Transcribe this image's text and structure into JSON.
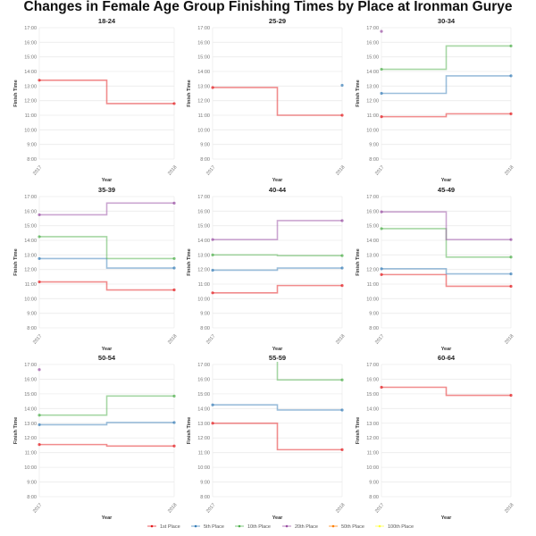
{
  "chart_data": {
    "type": "line",
    "step": "mid",
    "title": "Changes in Female Age Group Finishing Times by Place at Ironman Gurye",
    "xlabel": "Year",
    "ylabel": "Finish Time",
    "x": [
      "2017",
      "2018"
    ],
    "yticks": [
      "8:00",
      "9:00",
      "10:00",
      "11:00",
      "12:00",
      "13:00",
      "14:00",
      "15:00",
      "16:00",
      "17:00"
    ],
    "ylim": [
      8,
      17
    ],
    "grid": true,
    "legend_placement": "bottom",
    "legend": [
      "1st Place",
      "5th Place",
      "10th Place",
      "20th Place",
      "50th Place",
      "100th Place"
    ],
    "colors": {
      "1st Place": "#e41a1c",
      "5th Place": "#377eb8",
      "10th Place": "#4daf4a",
      "20th Place": "#984ea3",
      "50th Place": "#ff7f00",
      "100th Place": "#ffff33"
    },
    "y_units": "hours",
    "panels": [
      {
        "title": "18-24",
        "series": [
          {
            "name": "1st Place",
            "values": [
              13.4,
              11.8
            ]
          }
        ]
      },
      {
        "title": "25-29",
        "series": [
          {
            "name": "1st Place",
            "values": [
              12.9,
              11.0
            ]
          },
          {
            "name": "5th Place",
            "values": [
              null,
              13.05
            ]
          }
        ]
      },
      {
        "title": "30-34",
        "series": [
          {
            "name": "1st Place",
            "values": [
              10.9,
              11.1
            ]
          },
          {
            "name": "5th Place",
            "values": [
              12.5,
              13.7
            ]
          },
          {
            "name": "10th Place",
            "values": [
              14.15,
              15.75
            ]
          },
          {
            "name": "20th Place",
            "values": [
              16.75,
              null
            ]
          }
        ]
      },
      {
        "title": "35-39",
        "series": [
          {
            "name": "1st Place",
            "values": [
              11.15,
              10.6
            ]
          },
          {
            "name": "5th Place",
            "values": [
              12.75,
              12.1
            ]
          },
          {
            "name": "10th Place",
            "values": [
              14.25,
              12.75
            ]
          },
          {
            "name": "20th Place",
            "values": [
              15.75,
              16.55
            ]
          }
        ]
      },
      {
        "title": "40-44",
        "series": [
          {
            "name": "1st Place",
            "values": [
              10.4,
              10.9
            ]
          },
          {
            "name": "5th Place",
            "values": [
              11.95,
              12.1
            ]
          },
          {
            "name": "10th Place",
            "values": [
              13.0,
              12.95
            ]
          },
          {
            "name": "20th Place",
            "values": [
              14.05,
              15.35
            ]
          }
        ]
      },
      {
        "title": "45-49",
        "series": [
          {
            "name": "1st Place",
            "values": [
              11.65,
              10.85
            ]
          },
          {
            "name": "5th Place",
            "values": [
              12.05,
              11.7
            ]
          },
          {
            "name": "10th Place",
            "values": [
              14.8,
              12.85
            ]
          },
          {
            "name": "20th Place",
            "values": [
              15.95,
              14.05
            ]
          }
        ]
      },
      {
        "title": "50-54",
        "series": [
          {
            "name": "1st Place",
            "values": [
              11.55,
              11.45
            ]
          },
          {
            "name": "5th Place",
            "values": [
              12.9,
              13.05
            ]
          },
          {
            "name": "10th Place",
            "values": [
              13.55,
              14.85
            ]
          },
          {
            "name": "20th Place",
            "values": [
              16.65,
              null
            ]
          }
        ]
      },
      {
        "title": "55-59",
        "series": [
          {
            "name": "1st Place",
            "values": [
              13.0,
              11.2
            ]
          },
          {
            "name": "5th Place",
            "values": [
              14.25,
              13.9
            ]
          },
          {
            "name": "10th Place",
            "values": [
              17.4,
              15.95
            ]
          }
        ]
      },
      {
        "title": "60-64",
        "series": [
          {
            "name": "1st Place",
            "values": [
              15.45,
              14.9
            ]
          }
        ]
      }
    ]
  }
}
